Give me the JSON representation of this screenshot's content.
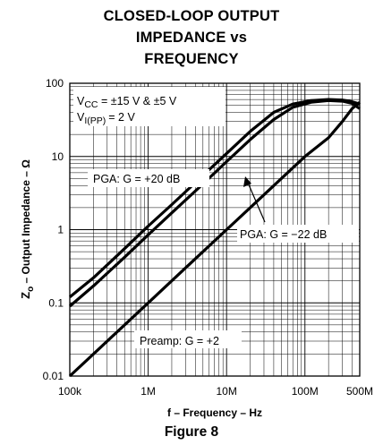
{
  "title_lines": [
    "CLOSED-LOOP OUTPUT",
    "IMPEDANCE vs",
    "FREQUENCY"
  ],
  "caption": "Figure 8",
  "chart_data": {
    "type": "line",
    "title": "CLOSED-LOOP OUTPUT IMPEDANCE vs FREQUENCY",
    "xlabel": "f – Frequency – Hz",
    "ylabel_main": "Z",
    "ylabel_sub": "o",
    "ylabel_rest": " – Output Impedance – Ω",
    "x_scale": "log",
    "y_scale": "log",
    "xlim": [
      100000,
      500000000
    ],
    "ylim": [
      0.01,
      100
    ],
    "grid": true,
    "x_ticks": [
      {
        "value": 100000,
        "label": "100k"
      },
      {
        "value": 1000000,
        "label": "1M"
      },
      {
        "value": 10000000,
        "label": "10M"
      },
      {
        "value": 100000000,
        "label": "100M"
      },
      {
        "value": 500000000,
        "label": "500M"
      }
    ],
    "y_ticks": [
      {
        "value": 100,
        "label": "100"
      },
      {
        "value": 10,
        "label": "10"
      },
      {
        "value": 1,
        "label": "1"
      },
      {
        "value": 0.1,
        "label": "0.1"
      },
      {
        "value": 0.01,
        "label": "0.01"
      }
    ],
    "conditions": {
      "vcc_main": "V",
      "vcc_sub": "CC",
      "vcc_rest": " = ±15 V & ±5 V",
      "vi_main": "V",
      "vi_sub": "I(PP)",
      "vi_rest": "= 2 V"
    },
    "series": [
      {
        "name": "PGA: G = +20 dB",
        "points": [
          [
            100000,
            0.12
          ],
          [
            200000,
            0.22
          ],
          [
            500000,
            0.55
          ],
          [
            1000000,
            1.12
          ],
          [
            2000000,
            2.2
          ],
          [
            5000000,
            5.5
          ],
          [
            10000000,
            11
          ],
          [
            20000000,
            22
          ],
          [
            40000000,
            40
          ],
          [
            70000000,
            52
          ],
          [
            120000000,
            58
          ],
          [
            200000000,
            60
          ],
          [
            300000000,
            59
          ],
          [
            400000000,
            56
          ],
          [
            500000000,
            52
          ]
        ]
      },
      {
        "name": "PGA: G = −22 dB",
        "points": [
          [
            100000,
            0.09
          ],
          [
            200000,
            0.17
          ],
          [
            500000,
            0.42
          ],
          [
            1000000,
            0.85
          ],
          [
            2000000,
            1.7
          ],
          [
            5000000,
            4.2
          ],
          [
            10000000,
            8.5
          ],
          [
            20000000,
            17
          ],
          [
            40000000,
            32
          ],
          [
            70000000,
            47
          ],
          [
            120000000,
            55
          ],
          [
            200000000,
            58
          ],
          [
            300000000,
            57
          ],
          [
            400000000,
            53
          ],
          [
            500000000,
            45
          ]
        ]
      },
      {
        "name": "Preamp: G = +2",
        "points": [
          [
            100000,
            0.01
          ],
          [
            200000,
            0.02
          ],
          [
            500000,
            0.05
          ],
          [
            1000000,
            0.1
          ],
          [
            2000000,
            0.2
          ],
          [
            5000000,
            0.5
          ],
          [
            10000000,
            1.0
          ],
          [
            20000000,
            2.0
          ],
          [
            50000000,
            5.0
          ],
          [
            100000000,
            10
          ],
          [
            200000000,
            18
          ],
          [
            300000000,
            30
          ],
          [
            400000000,
            45
          ],
          [
            500000000,
            55
          ]
        ]
      }
    ],
    "annotations": [
      {
        "text": "PGA: G = +20 dB",
        "target_series": 0
      },
      {
        "text": "PGA: G = −22 dB",
        "target_series": 1,
        "arrow": true
      },
      {
        "text": "Preamp: G = +2",
        "target_series": 2
      }
    ]
  }
}
